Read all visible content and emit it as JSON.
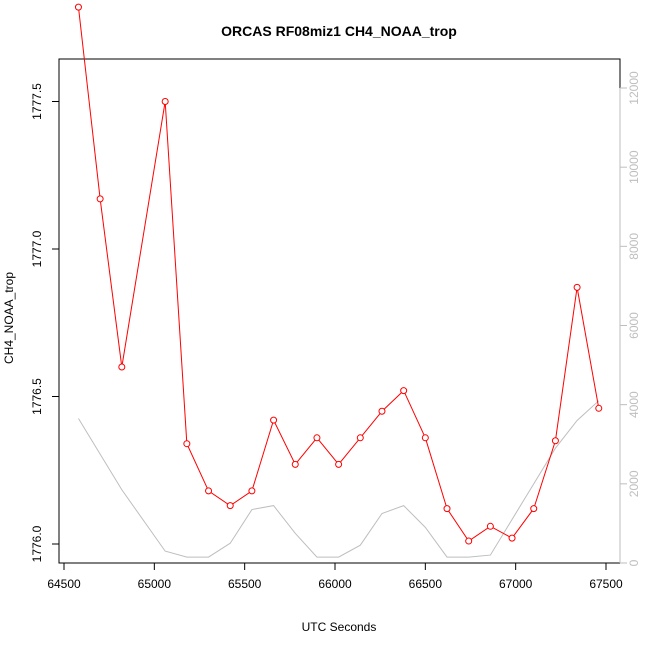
{
  "chart_data": {
    "type": "line",
    "title": "ORCAS RF08miz1 CH4_NOAA_trop",
    "xlabel": "UTC Seconds",
    "ylabel": "CH4_NOAA_trop",
    "xlim": [
      64500,
      67500
    ],
    "ylim_left": [
      1776.0,
      1777.6
    ],
    "ylim_right": [
      0,
      12000
    ],
    "x_ticks": [
      "64500",
      "65000",
      "65500",
      "66000",
      "66500",
      "67000",
      "67500"
    ],
    "y_ticks_left": [
      "1776.0",
      "1776.5",
      "1777.0",
      "1777.5"
    ],
    "y_ticks_right": [
      "0",
      "2000",
      "4000",
      "6000",
      "8000",
      "10000",
      "12000"
    ],
    "colors": {
      "primary": "#ff0000",
      "secondary": "#bebebe"
    },
    "series": [
      {
        "axis": "left",
        "style": "line+circle",
        "x": [
          64580,
          64700,
          64820,
          65060,
          65180,
          65300,
          65420,
          65540,
          65660,
          65780,
          65900,
          66020,
          66140,
          66260,
          66380,
          66500,
          66620,
          66740,
          66860,
          66980,
          67100,
          67220,
          67340,
          67460
        ],
        "y": [
          1777.82,
          1777.17,
          1776.6,
          1777.5,
          1776.34,
          1776.18,
          1776.13,
          1776.18,
          1776.42,
          1776.27,
          1776.36,
          1776.27,
          1776.36,
          1776.45,
          1776.52,
          1776.36,
          1776.12,
          1776.01,
          1776.06,
          1776.02,
          1776.12,
          1776.35,
          1776.87,
          1776.46
        ]
      },
      {
        "axis": "right",
        "style": "line",
        "x": [
          64580,
          64820,
          65060,
          65180,
          65300,
          65420,
          65540,
          65660,
          65780,
          65900,
          66020,
          66140,
          66260,
          66380,
          66500,
          66620,
          66740,
          66860,
          66980,
          67100,
          67220,
          67340,
          67460
        ],
        "y": [
          3650,
          1850,
          300,
          150,
          150,
          500,
          1350,
          1450,
          750,
          150,
          150,
          450,
          1250,
          1450,
          900,
          150,
          150,
          200,
          1100,
          2000,
          2900,
          3600,
          4100
        ]
      }
    ]
  }
}
